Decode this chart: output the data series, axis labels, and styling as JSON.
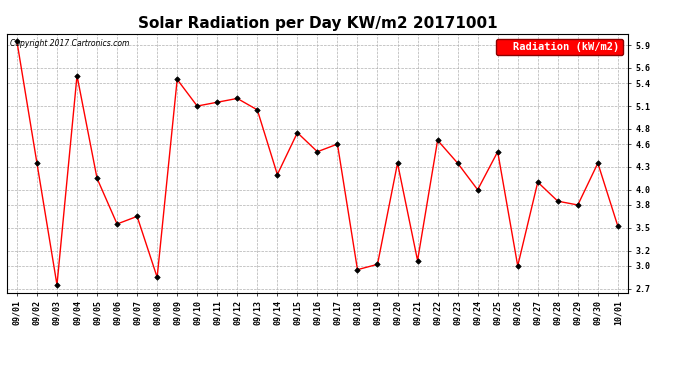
{
  "title": "Solar Radiation per Day KW/m2 20171001",
  "copyright": "Copyright 2017 Cartronics.com",
  "legend_label": "Radiation (kW/m2)",
  "x_labels": [
    "09/01",
    "09/02",
    "09/03",
    "09/04",
    "09/05",
    "09/06",
    "09/07",
    "09/08",
    "09/09",
    "09/10",
    "09/11",
    "09/12",
    "09/13",
    "09/14",
    "09/15",
    "09/16",
    "09/17",
    "09/18",
    "09/19",
    "09/20",
    "09/21",
    "09/22",
    "09/23",
    "09/24",
    "09/25",
    "09/26",
    "09/27",
    "09/28",
    "09/29",
    "09/30",
    "10/01"
  ],
  "y_values": [
    5.95,
    4.35,
    2.75,
    5.5,
    4.15,
    3.55,
    3.65,
    2.85,
    5.45,
    5.1,
    5.15,
    5.2,
    5.05,
    4.2,
    4.75,
    4.5,
    4.6,
    2.95,
    3.02,
    4.35,
    3.07,
    4.65,
    4.35,
    4.0,
    4.5,
    3.0,
    4.1,
    3.85,
    3.8,
    4.35,
    3.52
  ],
  "line_color": "#ff0000",
  "marker_color": "#000000",
  "background_color": "#ffffff",
  "grid_color": "#b0b0b0",
  "ylim_min": 2.65,
  "ylim_max": 6.05,
  "yticks": [
    2.7,
    3.0,
    3.2,
    3.5,
    3.8,
    4.0,
    4.3,
    4.6,
    4.8,
    5.1,
    5.4,
    5.6,
    5.9
  ],
  "title_fontsize": 11,
  "tick_fontsize": 6,
  "legend_fontsize": 7.5,
  "copyright_fontsize": 5.5
}
